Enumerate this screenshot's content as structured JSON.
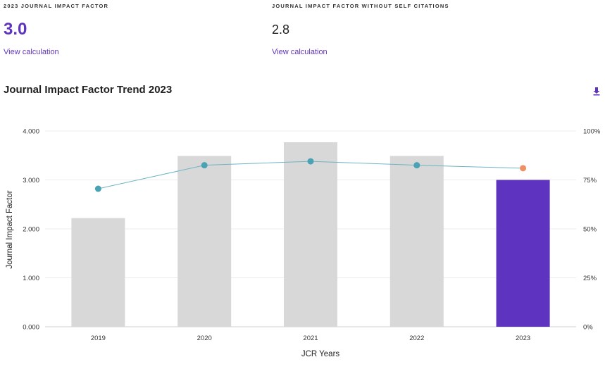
{
  "metrics": {
    "jif_label": "2023 JOURNAL IMPACT FACTOR",
    "jif_value": "3.0",
    "jif_link": "View calculation",
    "jif_wo_self_label": "JOURNAL IMPACT FACTOR WITHOUT SELF CITATIONS",
    "jif_wo_self_value": "2.8",
    "jif_wo_self_link": "View calculation"
  },
  "section": {
    "title": "Journal Impact Factor Trend 2023",
    "download_icon": "download-icon"
  },
  "colors": {
    "accent": "#5e33bf",
    "bar_default": "#d8d8d8",
    "line": "#6fb4c4",
    "point": "#4aa3b5",
    "point_current": "#ef9064"
  },
  "chart_data": {
    "type": "bar",
    "categories": [
      "2019",
      "2020",
      "2021",
      "2022",
      "2023"
    ],
    "series": [
      {
        "values": [
          2.22,
          3.49,
          3.77,
          3.49,
          3.0
        ],
        "axis": "left"
      },
      {
        "type": "line",
        "values": [
          70.5,
          82.5,
          84.5,
          82.5,
          81
        ],
        "axis": "right"
      }
    ],
    "highlight_category": "2023",
    "xlabel": "JCR Years",
    "ylabel": "Journal Impact Factor",
    "ylim": [
      0,
      4
    ],
    "y_ticks": [
      "0.000",
      "1.000",
      "2.000",
      "3.000",
      "4.000"
    ],
    "y2lim": [
      0,
      100
    ],
    "y2_ticks": [
      "0%",
      "25%",
      "50%",
      "75%",
      "100%"
    ],
    "grid": true
  }
}
